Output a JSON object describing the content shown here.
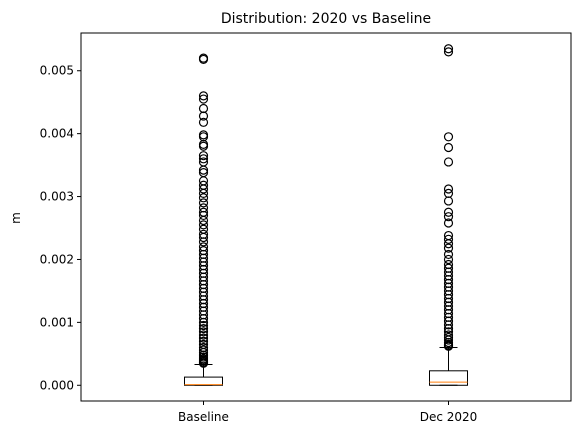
{
  "chart_data": {
    "type": "box",
    "title": "Distribution: 2020 vs Baseline",
    "xlabel": "",
    "ylabel": "m",
    "ylim": [
      -0.00025,
      0.0056
    ],
    "yticks": [
      0.0,
      0.001,
      0.002,
      0.003,
      0.004,
      0.005
    ],
    "ytick_labels": [
      "0.000",
      "0.001",
      "0.002",
      "0.003",
      "0.004",
      "0.005"
    ],
    "categories": [
      "Baseline",
      "Dec 2020"
    ],
    "boxes": [
      {
        "name": "Baseline",
        "whisker_low": 0.0,
        "q1": 0.0,
        "median": 1e-05,
        "q3": 0.00013,
        "whisker_high": 0.00033,
        "outliers": [
          0.0052,
          0.00518,
          0.0046,
          0.00455,
          0.0044,
          0.00428,
          0.00418,
          0.00398,
          0.00395,
          0.00383,
          0.0038,
          0.00365,
          0.0036,
          0.00355,
          0.00342,
          0.00338,
          0.00325,
          0.00318,
          0.00312,
          0.00305,
          0.00298,
          0.0029,
          0.00282,
          0.00275,
          0.0027,
          0.00262,
          0.00255,
          0.00248,
          0.0024,
          0.00235,
          0.00228,
          0.0022,
          0.00214,
          0.00208,
          0.00202,
          0.00196,
          0.0019,
          0.00184,
          0.00178,
          0.00172,
          0.00166,
          0.0016,
          0.00154,
          0.00148,
          0.00142,
          0.00136,
          0.0013,
          0.00124,
          0.00118,
          0.00112,
          0.00106,
          0.001,
          0.00095,
          0.0009,
          0.00085,
          0.0008,
          0.00075,
          0.0007,
          0.00065,
          0.0006,
          0.00056,
          0.00052,
          0.00048,
          0.00045,
          0.00042,
          0.0004,
          0.00038,
          0.00036,
          0.00035
        ]
      },
      {
        "name": "Dec 2020",
        "whisker_low": 0.0,
        "q1": 0.0,
        "median": 5e-05,
        "q3": 0.00023,
        "whisker_high": 0.0006,
        "outliers": [
          0.00535,
          0.0053,
          0.00395,
          0.00378,
          0.00355,
          0.00312,
          0.00305,
          0.00293,
          0.00275,
          0.00268,
          0.00258,
          0.00238,
          0.00232,
          0.00225,
          0.00218,
          0.00208,
          0.002,
          0.00192,
          0.00186,
          0.0018,
          0.00174,
          0.00168,
          0.00162,
          0.00156,
          0.0015,
          0.00144,
          0.00138,
          0.00132,
          0.00126,
          0.0012,
          0.00114,
          0.00108,
          0.00102,
          0.00096,
          0.0009,
          0.00085,
          0.0008,
          0.00076,
          0.00072,
          0.00068,
          0.00065,
          0.00063,
          0.00062
        ]
      }
    ],
    "grid": false,
    "legend": "none",
    "box_color": "#000000",
    "median_color": "#ff7f0e",
    "outlier_marker": "open-circle"
  }
}
